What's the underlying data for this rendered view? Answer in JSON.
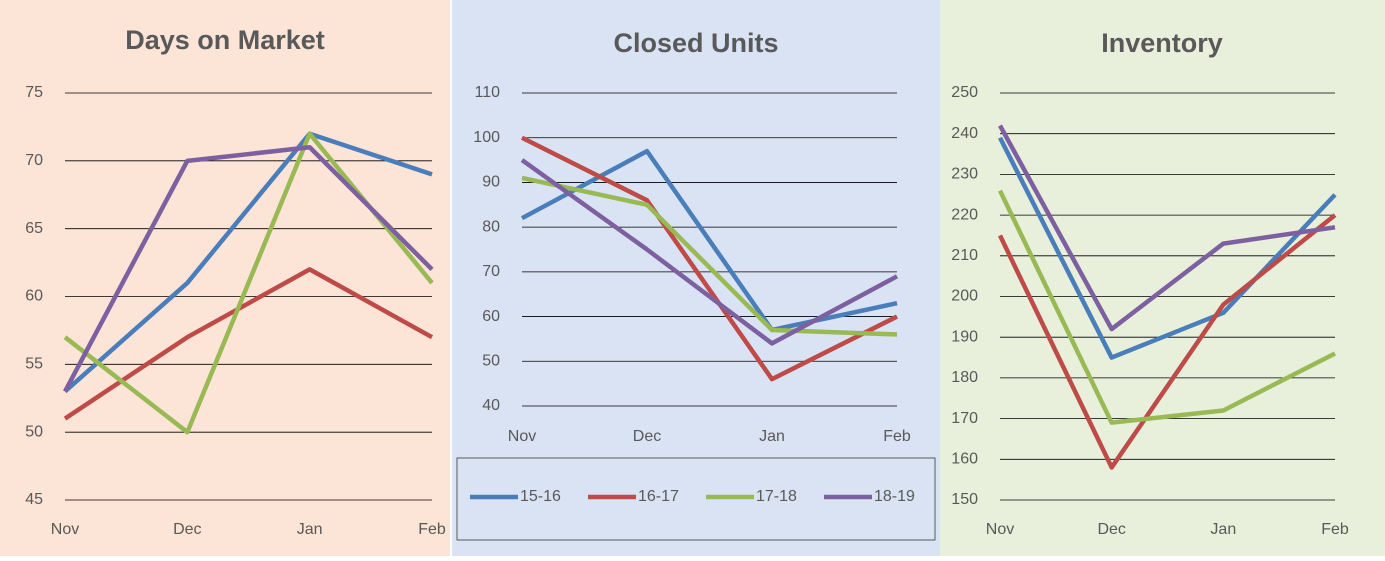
{
  "chart_data": [
    {
      "type": "line",
      "title": "Days on Market",
      "categories": [
        "Nov",
        "Dec",
        "Jan",
        "Feb"
      ],
      "ylim": [
        45,
        75
      ],
      "yticks": [
        45,
        50,
        55,
        60,
        65,
        70,
        75
      ],
      "grid": true,
      "series": [
        {
          "name": "15-16",
          "color": "#4a7ebb",
          "values": [
            53,
            61,
            72,
            69
          ]
        },
        {
          "name": "16-17",
          "color": "#be4b48",
          "values": [
            51,
            57,
            62,
            57
          ]
        },
        {
          "name": "17-18",
          "color": "#98b954",
          "values": [
            57,
            50,
            72,
            61
          ]
        },
        {
          "name": "18-19",
          "color": "#7d60a0",
          "values": [
            53,
            70,
            71,
            62
          ]
        }
      ]
    },
    {
      "type": "line",
      "title": "Closed Units",
      "categories": [
        "Nov",
        "Dec",
        "Jan",
        "Feb"
      ],
      "ylim": [
        40,
        110
      ],
      "yticks": [
        40,
        50,
        60,
        70,
        80,
        90,
        100,
        110
      ],
      "grid": true,
      "legend": "bottom",
      "series": [
        {
          "name": "15-16",
          "color": "#4a7ebb",
          "values": [
            82,
            97,
            57,
            63
          ]
        },
        {
          "name": "16-17",
          "color": "#be4b48",
          "values": [
            100,
            86,
            46,
            60
          ]
        },
        {
          "name": "17-18",
          "color": "#98b954",
          "values": [
            91,
            85,
            57,
            56
          ]
        },
        {
          "name": "18-19",
          "color": "#7d60a0",
          "values": [
            95,
            75,
            54,
            69
          ]
        }
      ]
    },
    {
      "type": "line",
      "title": "Inventory",
      "categories": [
        "Nov",
        "Dec",
        "Jan",
        "Feb"
      ],
      "ylim": [
        150,
        250
      ],
      "yticks": [
        150,
        160,
        170,
        180,
        190,
        200,
        210,
        220,
        230,
        240,
        250
      ],
      "grid": true,
      "series": [
        {
          "name": "15-16",
          "color": "#4a7ebb",
          "values": [
            239,
            185,
            196,
            225
          ]
        },
        {
          "name": "16-17",
          "color": "#be4b48",
          "values": [
            215,
            158,
            198,
            220
          ]
        },
        {
          "name": "17-18",
          "color": "#98b954",
          "values": [
            226,
            169,
            172,
            186
          ]
        },
        {
          "name": "18-19",
          "color": "#7d60a0",
          "values": [
            242,
            192,
            213,
            217
          ]
        }
      ]
    }
  ]
}
